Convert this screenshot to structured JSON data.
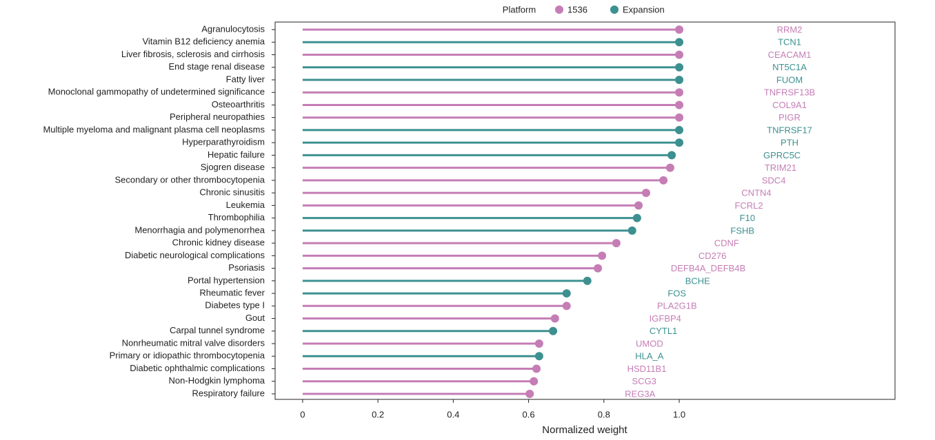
{
  "chart_data": {
    "type": "lollipop",
    "x_label": "Normalized weight",
    "legend_title": "Platform",
    "legend_position": "top",
    "categories": [
      "Agranulocytosis",
      "Vitamin B12 deficiency anemia",
      "Liver fibrosis, sclerosis and cirrhosis",
      "End stage renal disease",
      "Fatty liver",
      "Monoclonal gammopathy of undetermined significance",
      "Osteoarthritis",
      "Peripheral neuropathies",
      "Multiple myeloma and malignant plasma cell neoplasms",
      "Hyperparathyroidism",
      "Hepatic failure",
      "Sjogren disease",
      "Secondary or other thrombocytopenia",
      "Chronic sinusitis",
      "Leukemia",
      "Thrombophilia",
      "Menorrhagia and polymenorrhea",
      "Chronic kidney disease",
      "Diabetic neurological complications",
      "Psoriasis",
      "Portal hypertension",
      "Rheumatic fever",
      "Diabetes type I",
      "Gout",
      "Carpal tunnel syndrome",
      "Nonrheumatic mitral valve disorders",
      "Primary or idiopathic thrombocytopenia",
      "Diabetic ophthalmic complications",
      "Non-Hodgkin lymphoma",
      "Respiratory failure"
    ],
    "gene_labels": [
      "RRM2",
      "TCN1",
      "CEACAM1",
      "NT5C1A",
      "FUOM",
      "TNFRSF13B",
      "COL9A1",
      "PIGR",
      "TNFRSF17",
      "PTH",
      "GPRC5C",
      "TRIM21",
      "SDC4",
      "CNTN4",
      "FCRL2",
      "F10",
      "FSHB",
      "CDNF",
      "CD276",
      "DEFB4A_DEFB4B",
      "BCHE",
      "FOS",
      "PLA2G1B",
      "IGFBP4",
      "CYTL1",
      "UMOD",
      "HLA_A",
      "HSD11B1",
      "SCG3",
      "REG3A"
    ],
    "series": [
      {
        "name": "1536",
        "color": "#c57db5",
        "values": [
          1.0,
          null,
          1.0,
          null,
          null,
          1.0,
          1.0,
          1.0,
          null,
          null,
          null,
          0.976,
          0.958,
          0.912,
          0.892,
          null,
          null,
          0.833,
          0.795,
          0.784,
          null,
          null,
          0.701,
          0.67,
          null,
          0.628,
          null,
          0.621,
          0.614,
          0.603
        ]
      },
      {
        "name": "Expansion",
        "color": "#3d9090",
        "values": [
          null,
          1.0,
          null,
          1.0,
          1.0,
          null,
          null,
          null,
          1.0,
          1.0,
          0.98,
          null,
          null,
          null,
          null,
          0.888,
          0.875,
          null,
          null,
          null,
          0.756,
          0.701,
          null,
          null,
          0.665,
          null,
          0.628,
          null,
          null,
          null
        ]
      }
    ],
    "xlim": [
      -0.073,
      1.573
    ],
    "xticks": [
      0,
      0.2,
      0.4,
      0.6,
      0.8,
      {
        "value": 1.0,
        "label": "1.0"
      }
    ]
  }
}
